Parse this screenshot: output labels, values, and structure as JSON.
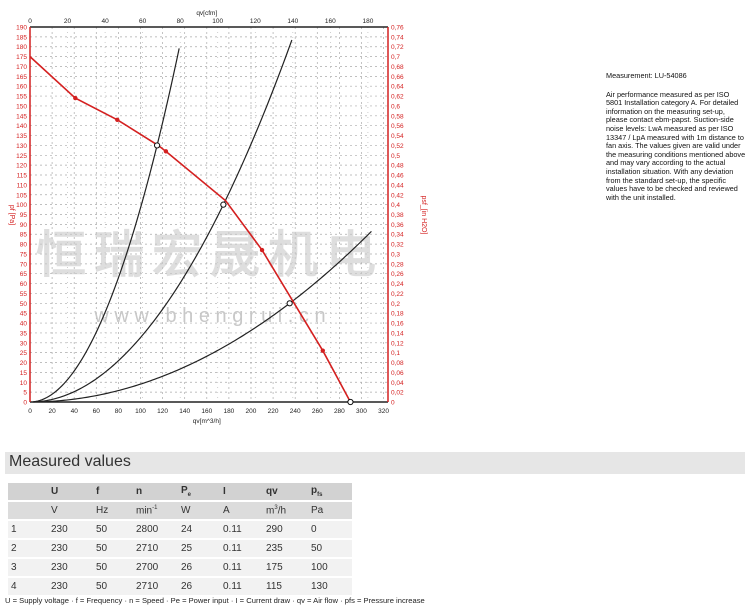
{
  "chart_data": {
    "type": "line",
    "xlabel": "qv[m^3/h]",
    "x2label": "qv[cfm]",
    "ylabel": "pf [Pa]",
    "y2label": "psf_[in H2O]",
    "xlim": [
      0,
      324
    ],
    "ylim": [
      0,
      190
    ],
    "y2lim": [
      0,
      0.76
    ],
    "xticks": [
      0,
      20,
      40,
      60,
      80,
      100,
      120,
      140,
      160,
      180,
      200,
      220,
      240,
      260,
      280,
      300,
      320
    ],
    "x2ticks": [
      0,
      20,
      40,
      60,
      80,
      100,
      120,
      140,
      160,
      180
    ],
    "y2ticks_step": 0.02,
    "yticks_step": 5,
    "grid": true,
    "colors": {
      "fan_curve": "#d42020",
      "system_curve": "#222222",
      "axis": "#d42020"
    },
    "fan_curve": {
      "x": [
        0,
        41,
        79,
        116,
        123,
        177,
        210,
        238,
        265,
        290
      ],
      "y": [
        175,
        154,
        143,
        130,
        127,
        102,
        77,
        51,
        26,
        0
      ],
      "markers_x": [
        41,
        79,
        123,
        210,
        265
      ]
    },
    "system_curves": [
      {
        "k_point": [
          115,
          130
        ],
        "x_end": 136
      },
      {
        "k_point": [
          175,
          100
        ],
        "x_end": 237
      },
      {
        "k_point": [
          235,
          50
        ],
        "x_end": 309
      }
    ],
    "operating_points": [
      [
        290,
        0
      ],
      [
        235,
        50
      ],
      [
        175,
        100
      ],
      [
        115,
        130
      ]
    ]
  },
  "watermark": {
    "cn": "恒瑞宏晟机电",
    "url": "w w w . b h e n g r u i . c n"
  },
  "side": {
    "measurement": "Measurement: LU-54086",
    "text": "Air performance measured as per ISO 5801 Installation category A. For detailed information on the measuring set-up, please contact ebm-papst. Suction-side noise levels: LwA measured as per ISO 13347 / LpA measured with 1m distance to fan axis. The values given are valid under the measuring conditions mentioned above and may vary according to the actual installation situation. With any deviation from the standard set-up, the specific values have to be checked and reviewed with the unit installed."
  },
  "table": {
    "title": "Measured values",
    "headers": [
      "",
      "U",
      "f",
      "n",
      "Pe",
      "I",
      "qv",
      "pfs"
    ],
    "units": [
      "",
      "V",
      "Hz",
      "min-1",
      "W",
      "A",
      "m3/h",
      "Pa"
    ],
    "rows": [
      [
        "1",
        "230",
        "50",
        "2800",
        "24",
        "0.11",
        "290",
        "0"
      ],
      [
        "2",
        "230",
        "50",
        "2710",
        "25",
        "0.11",
        "235",
        "50"
      ],
      [
        "3",
        "230",
        "50",
        "2700",
        "26",
        "0.11",
        "175",
        "100"
      ],
      [
        "4",
        "230",
        "50",
        "2710",
        "26",
        "0.11",
        "115",
        "130"
      ]
    ],
    "footnote": "U = Supply voltage · f = Frequency · n = Speed · Pe = Power input · I = Current draw · qv = Air flow · pfs = Pressure increase"
  }
}
